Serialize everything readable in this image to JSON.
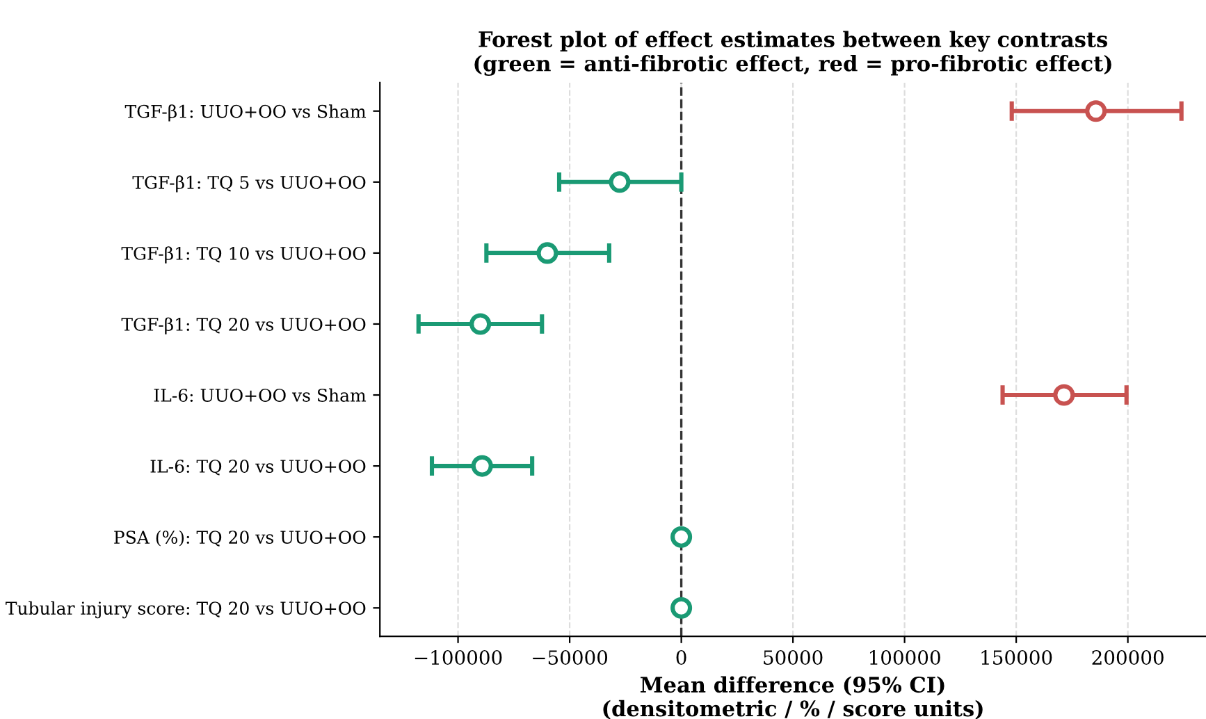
{
  "chart_data": {
    "type": "scatter",
    "orientation": "horizontal",
    "title": "Forest plot of effect estimates between key contrasts\n(green = anti-fibrotic effect, red = pro-fibrotic effect)",
    "xlabel": "Mean difference (95% CI)\n(densitometric / % / score units)",
    "categories": [
      "TGF-β1: UUO+OO vs Sham",
      "TGF-β1: TQ 5 vs UUO+OO",
      "TGF-β1: TQ 10 vs UUO+OO",
      "TGF-β1: TQ 20 vs UUO+OO",
      "IL-6: UUO+OO vs Sham",
      "IL-6: TQ 20 vs UUO+OO",
      "PSA (%): TQ 20 vs UUO+OO",
      "Tubular injury score: TQ 20 vs UUO+OO"
    ],
    "values": [
      185700,
      -27600,
      -60000,
      -90000,
      171400,
      -89200,
      0,
      0
    ],
    "errors": [
      [
        148000,
        224000
      ],
      [
        -54700,
        0
      ],
      [
        -87300,
        -32300
      ],
      [
        -117700,
        -62400
      ],
      [
        143900,
        199400
      ],
      [
        -111700,
        -66800
      ],
      null,
      null
    ],
    "colors": [
      "#c85250",
      "#1a9a74",
      "#1a9a74",
      "#1a9a74",
      "#c85250",
      "#1a9a74",
      "#1a9a74",
      "#1a9a74"
    ],
    "xlim": [
      -135000,
      235000
    ],
    "xticks": [
      {
        "value": -100000,
        "label": "−100000"
      },
      {
        "value": -50000,
        "label": "−50000"
      },
      0,
      50000,
      100000,
      150000,
      200000
    ],
    "ref_lines": [
      {
        "axis": "x",
        "value": 0,
        "color": "#333333",
        "line_style": "dashed"
      }
    ],
    "grid": "x",
    "marker": "circle"
  }
}
